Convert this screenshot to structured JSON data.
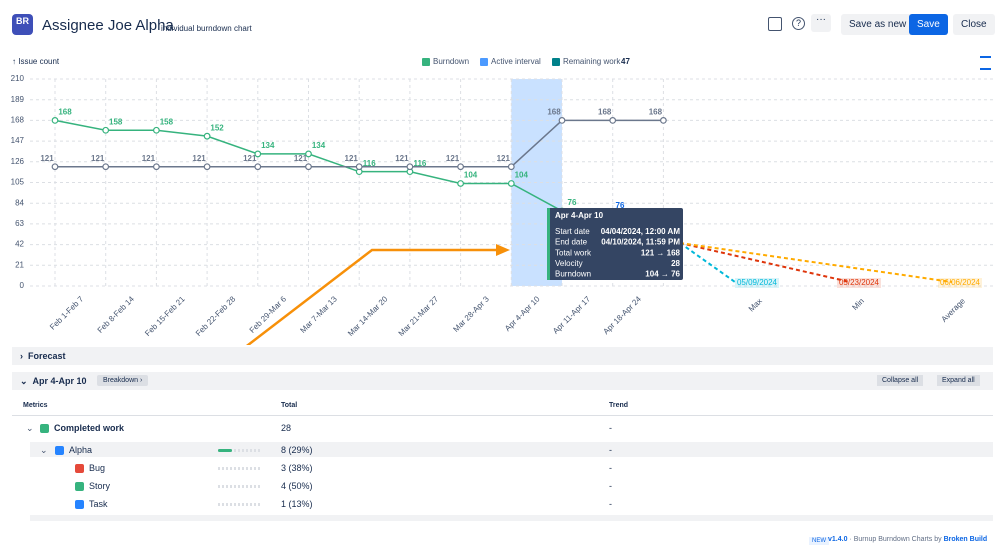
{
  "header": {
    "logo": "BR",
    "title": "Assignee Joe Alpha",
    "subtitle": "individual burndown chart",
    "buttons": [
      "Save as new",
      "Save",
      "Close"
    ]
  },
  "chart_data": {
    "type": "line",
    "y_label": "↑ Issue count",
    "categories": [
      "Feb 1-Feb 7",
      "Feb 8-Feb 14",
      "Feb 15-Feb 21",
      "Feb 22-Feb 28",
      "Feb 29-Mar 6",
      "Mar 7-Mar 13",
      "Mar 14-Mar 20",
      "Mar 21-Mar 27",
      "Mar 28-Apr 3",
      "Apr 4-Apr 10",
      "Apr 11-Apr 17",
      "Apr 18-Apr 24",
      null
    ],
    "ylim": [
      0,
      210
    ],
    "yticks": [
      0,
      21,
      42,
      63,
      84,
      105,
      126,
      147,
      168,
      189,
      210
    ],
    "grid": true,
    "series": [
      {
        "name": "Burndown",
        "color": "#36b37e",
        "values": [
          168,
          158,
          158,
          152,
          134,
          134,
          116,
          116,
          104,
          104,
          76,
          null,
          null
        ]
      },
      {
        "color": "#6b778c",
        "values": [
          121,
          121,
          121,
          121,
          121,
          121,
          121,
          121,
          121,
          121,
          168,
          168,
          168
        ]
      }
    ],
    "active_interval": {
      "name": "Active interval",
      "color": "#4c9aff",
      "band": "Apr 4-Apr 10"
    },
    "remaining_work": {
      "label": "Remaining work",
      "value": 47,
      "color": "#00818a"
    },
    "scope_label": 76,
    "forecast": [
      {
        "name": "Max",
        "date": "05/09/2024",
        "color": "#00b8d9"
      },
      {
        "name": "Min",
        "date": "05/23/2024",
        "color": "#de350b"
      },
      {
        "name": "Average",
        "date": "06/06/2024",
        "color": "#ffab00"
      }
    ],
    "tooltip": {
      "title": "Apr 4-Apr 10",
      "rows": [
        [
          "Start date",
          "04/04/2024, 12:00 AM"
        ],
        [
          "End date",
          "04/10/2024, 11:59 PM"
        ],
        [
          "Total work",
          "121 → 168"
        ],
        [
          "Velocity",
          "28"
        ],
        [
          "Burndown",
          "104 → 76"
        ]
      ]
    }
  },
  "panel": {
    "forecast": "Forecast",
    "interval": "Apr 4-Apr 10",
    "breakdown": "Breakdown",
    "collapse": "Collapse all",
    "expand": "Expand all",
    "columns": [
      "Metrics",
      "Total",
      "Trend"
    ],
    "rows": [
      [
        "Completed work",
        "28",
        "-"
      ],
      [
        "Alpha",
        "8 (29%)",
        "-"
      ],
      [
        "Bug",
        "3 (38%)",
        "-"
      ],
      [
        "Story",
        "4 (50%)",
        "-"
      ],
      [
        "Task",
        "1 (13%)",
        "-"
      ]
    ]
  },
  "footer": {
    "badge": "NEW",
    "version": "v1.4.0",
    "text": "· Burnup Burndown Charts by",
    "brand": "Broken Build"
  }
}
